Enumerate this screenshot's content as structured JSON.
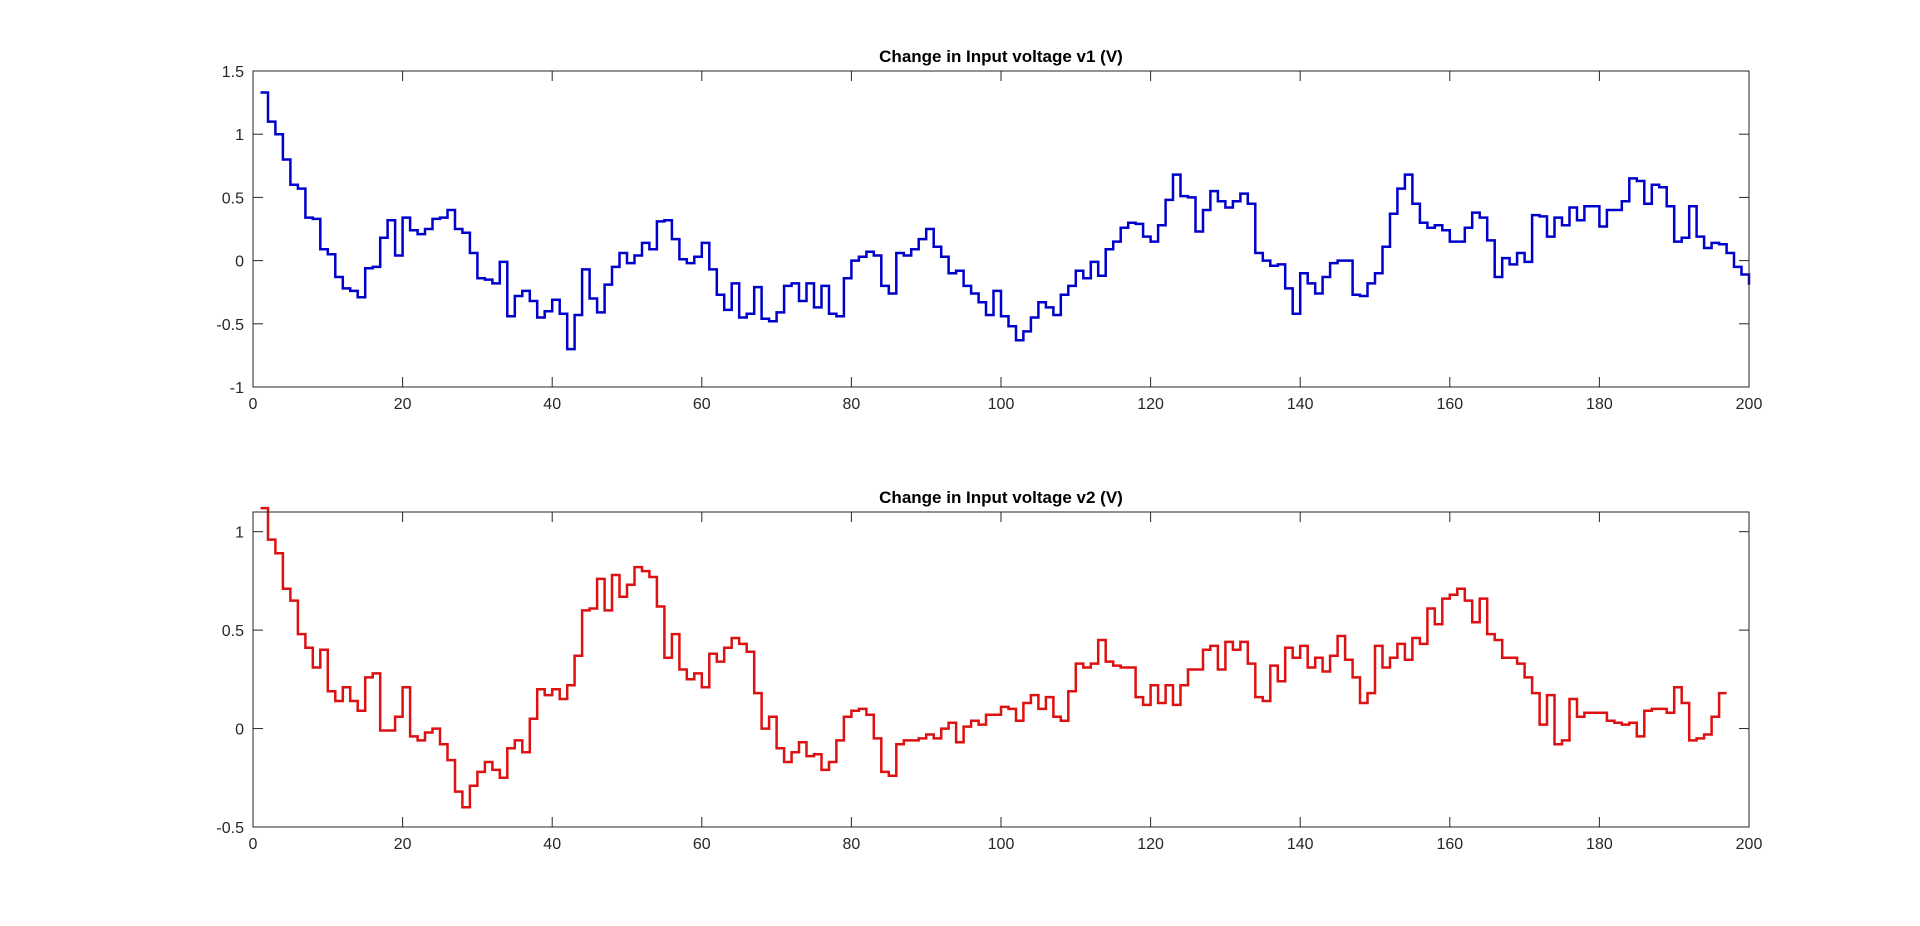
{
  "chart_data": [
    {
      "type": "line",
      "step": true,
      "title": "Change in Input voltage v1 (V)",
      "xlabel": "",
      "ylabel": "",
      "xlim": [
        0,
        200
      ],
      "ylim": [
        -1,
        1.5
      ],
      "xticks": [
        0,
        20,
        40,
        60,
        80,
        100,
        120,
        140,
        160,
        180,
        200
      ],
      "xtick_labels": [
        "0",
        "20",
        "40",
        "60",
        "80",
        "100",
        "120",
        "140",
        "160",
        "180",
        "200"
      ],
      "yticks": [
        -1,
        -0.5,
        0,
        0.5,
        1,
        1.5
      ],
      "ytick_labels": [
        "-1",
        "-0.5",
        "0",
        "0.5",
        "1",
        "1.5"
      ],
      "grid": false,
      "color": "#0000cc",
      "series": [
        {
          "x_start": 1,
          "x_step": 1,
          "values": [
            1.33,
            1.1,
            1.0,
            0.8,
            0.6,
            0.57,
            0.34,
            0.33,
            0.09,
            0.05,
            -0.13,
            -0.22,
            -0.24,
            -0.29,
            -0.06,
            -0.05,
            0.18,
            0.32,
            0.04,
            0.34,
            0.24,
            0.21,
            0.25,
            0.33,
            0.34,
            0.4,
            0.25,
            0.22,
            0.06,
            -0.14,
            -0.15,
            -0.18,
            -0.01,
            -0.44,
            -0.28,
            -0.24,
            -0.32,
            -0.45,
            -0.4,
            -0.31,
            -0.42,
            -0.7,
            -0.43,
            -0.07,
            -0.3,
            -0.41,
            -0.19,
            -0.05,
            0.06,
            -0.02,
            0.04,
            0.14,
            0.09,
            0.31,
            0.32,
            0.17,
            0.01,
            -0.02,
            0.03,
            0.14,
            -0.07,
            -0.27,
            -0.39,
            -0.18,
            -0.45,
            -0.42,
            -0.21,
            -0.46,
            -0.48,
            -0.41,
            -0.2,
            -0.18,
            -0.32,
            -0.18,
            -0.37,
            -0.2,
            -0.42,
            -0.44,
            -0.14,
            0.0,
            0.03,
            0.07,
            0.04,
            -0.2,
            -0.26,
            0.06,
            0.04,
            0.09,
            0.17,
            0.25,
            0.11,
            0.03,
            -0.1,
            -0.08,
            -0.2,
            -0.26,
            -0.33,
            -0.43,
            -0.24,
            -0.44,
            -0.52,
            -0.63,
            -0.56,
            -0.45,
            -0.33,
            -0.37,
            -0.43,
            -0.27,
            -0.2,
            -0.08,
            -0.14,
            -0.01,
            -0.12,
            0.09,
            0.15,
            0.26,
            0.3,
            0.29,
            0.19,
            0.15,
            0.28,
            0.48,
            0.68,
            0.51,
            0.5,
            0.23,
            0.4,
            0.55,
            0.47,
            0.42,
            0.47,
            0.53,
            0.45,
            0.06,
            0.0,
            -0.04,
            -0.03,
            -0.22,
            -0.42,
            -0.1,
            -0.18,
            -0.26,
            -0.13,
            -0.02,
            0.0,
            0.0,
            -0.27,
            -0.28,
            -0.18,
            -0.1,
            0.11,
            0.37,
            0.57,
            0.68,
            0.45,
            0.3,
            0.26,
            0.28,
            0.24,
            0.15,
            0.15,
            0.26,
            0.38,
            0.34,
            0.16,
            -0.13,
            0.02,
            -0.03,
            0.06,
            -0.01,
            0.36,
            0.35,
            0.19,
            0.34,
            0.28,
            0.42,
            0.32,
            0.43,
            0.43,
            0.27,
            0.4,
            0.4,
            0.47,
            0.65,
            0.63,
            0.45,
            0.6,
            0.58,
            0.43,
            0.15,
            0.18,
            0.43,
            0.19,
            0.1,
            0.14,
            0.13,
            0.06,
            -0.05,
            -0.11,
            -0.19
          ]
        }
      ]
    },
    {
      "type": "line",
      "step": true,
      "title": "Change in Input voltage v2 (V)",
      "xlabel": "",
      "ylabel": "",
      "xlim": [
        0,
        200
      ],
      "ylim": [
        -0.5,
        1.1
      ],
      "xticks": [
        0,
        20,
        40,
        60,
        80,
        100,
        120,
        140,
        160,
        180,
        200
      ],
      "xtick_labels": [
        "0",
        "20",
        "40",
        "60",
        "80",
        "100",
        "120",
        "140",
        "160",
        "180",
        "200"
      ],
      "yticks": [
        -0.5,
        0,
        0.5,
        1
      ],
      "ytick_labels": [
        "-0.5",
        "0",
        "0.5",
        "1"
      ],
      "grid": false,
      "color": "#dd1111",
      "series": [
        {
          "x_start": 1,
          "x_step": 1,
          "values": [
            1.12,
            0.96,
            0.89,
            0.71,
            0.65,
            0.48,
            0.41,
            0.31,
            0.4,
            0.19,
            0.14,
            0.21,
            0.14,
            0.09,
            0.26,
            0.28,
            -0.01,
            -0.01,
            0.06,
            0.21,
            -0.04,
            -0.06,
            -0.02,
            0.0,
            -0.08,
            -0.16,
            -0.32,
            -0.4,
            -0.29,
            -0.22,
            -0.17,
            -0.21,
            -0.25,
            -0.1,
            -0.06,
            -0.12,
            0.05,
            0.2,
            0.17,
            0.2,
            0.15,
            0.22,
            0.37,
            0.6,
            0.61,
            0.76,
            0.6,
            0.78,
            0.67,
            0.73,
            0.82,
            0.8,
            0.77,
            0.62,
            0.36,
            0.48,
            0.3,
            0.25,
            0.28,
            0.21,
            0.38,
            0.34,
            0.41,
            0.46,
            0.43,
            0.39,
            0.18,
            0.0,
            0.06,
            -0.1,
            -0.17,
            -0.12,
            -0.07,
            -0.14,
            -0.13,
            -0.21,
            -0.17,
            -0.06,
            0.06,
            0.09,
            0.1,
            0.07,
            -0.05,
            -0.22,
            -0.24,
            -0.08,
            -0.06,
            -0.06,
            -0.05,
            -0.03,
            -0.05,
            0.0,
            0.03,
            -0.07,
            0.01,
            0.04,
            0.02,
            0.07,
            0.07,
            0.11,
            0.1,
            0.04,
            0.13,
            0.17,
            0.1,
            0.16,
            0.06,
            0.04,
            0.19,
            0.33,
            0.31,
            0.33,
            0.45,
            0.34,
            0.32,
            0.31,
            0.31,
            0.16,
            0.12,
            0.22,
            0.13,
            0.22,
            0.12,
            0.22,
            0.3,
            0.3,
            0.4,
            0.42,
            0.3,
            0.44,
            0.4,
            0.44,
            0.33,
            0.16,
            0.14,
            0.32,
            0.24,
            0.41,
            0.36,
            0.42,
            0.31,
            0.36,
            0.29,
            0.37,
            0.47,
            0.35,
            0.26,
            0.13,
            0.18,
            0.42,
            0.31,
            0.36,
            0.43,
            0.35,
            0.46,
            0.43,
            0.61,
            0.53,
            0.66,
            0.68,
            0.71,
            0.65,
            0.54,
            0.66,
            0.48,
            0.45,
            0.36,
            0.36,
            0.33,
            0.26,
            0.18,
            0.02,
            0.17,
            -0.08,
            -0.06,
            0.15,
            0.06,
            0.08,
            0.08,
            0.08,
            0.04,
            0.03,
            0.02,
            0.03,
            -0.04,
            0.09,
            0.1,
            0.1,
            0.08,
            0.21,
            0.13,
            -0.06,
            -0.05,
            -0.03,
            0.06,
            0.18
          ]
        }
      ]
    }
  ]
}
